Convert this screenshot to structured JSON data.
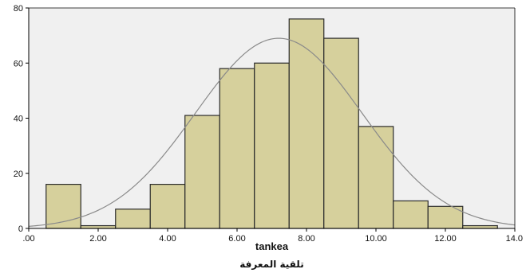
{
  "chart_data": {
    "type": "bar",
    "bins": [
      {
        "start": 0.5,
        "end": 1.5,
        "count": 16
      },
      {
        "start": 1.5,
        "end": 2.5,
        "count": 1
      },
      {
        "start": 2.5,
        "end": 3.5,
        "count": 7
      },
      {
        "start": 3.5,
        "end": 4.5,
        "count": 16
      },
      {
        "start": 4.5,
        "end": 5.5,
        "count": 41
      },
      {
        "start": 5.5,
        "end": 6.5,
        "count": 58
      },
      {
        "start": 6.5,
        "end": 7.5,
        "count": 60
      },
      {
        "start": 7.5,
        "end": 8.5,
        "count": 76
      },
      {
        "start": 8.5,
        "end": 9.5,
        "count": 69
      },
      {
        "start": 9.5,
        "end": 10.5,
        "count": 37
      },
      {
        "start": 10.5,
        "end": 11.5,
        "count": 10
      },
      {
        "start": 11.5,
        "end": 12.5,
        "count": 8
      },
      {
        "start": 12.5,
        "end": 13.5,
        "count": 1
      }
    ],
    "normal_curve": {
      "mean": 7.2,
      "std_dev": 2.4,
      "peak": 69
    },
    "xlim": [
      0,
      14
    ],
    "ylim": [
      0,
      80
    ],
    "x_ticks": [
      ".00",
      "2.00",
      "4.00",
      "6.00",
      "8.00",
      "10.00",
      "12.00",
      "14.0"
    ],
    "x_tick_values": [
      0,
      2,
      4,
      6,
      8,
      10,
      12,
      14
    ],
    "y_ticks": [
      "0",
      "20",
      "40",
      "60",
      "80"
    ],
    "y_tick_values": [
      0,
      20,
      40,
      60,
      80
    ],
    "xlabel": "tankea",
    "caption": "تلقية المعرفة",
    "ylabel": "",
    "grid": false,
    "colors": {
      "bar_fill": "#d6d09c",
      "bar_stroke": "#2b2b2b",
      "plot_background": "#f0f0f0",
      "curve": "#8a8a8a",
      "axis": "#000000"
    }
  }
}
